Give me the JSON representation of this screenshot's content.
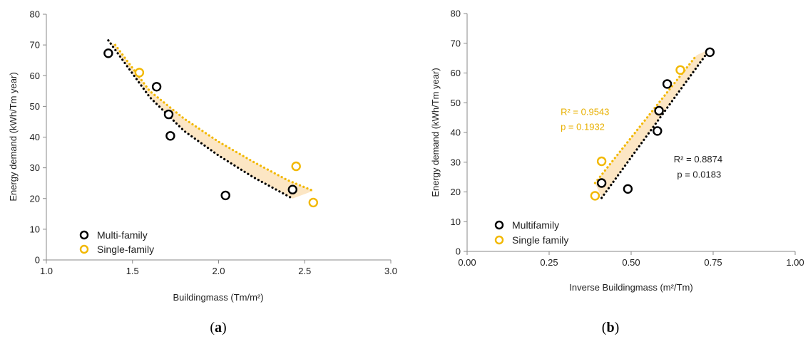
{
  "colors": {
    "multi": "#000000",
    "single": "#f2b800",
    "band": "#fce6c4",
    "axis": "#888888",
    "annot_single": "#e8b000",
    "annot_multi": "#222222"
  },
  "chart_data": [
    {
      "type": "scatter",
      "panel_label": "a",
      "xlabel": "Buildingmass (Tm/m²)",
      "ylabel": "Energy demand (kWh/Tm year)",
      "xlim": [
        1.0,
        3.0
      ],
      "ylim": [
        0,
        80
      ],
      "xticks": [
        "1.0",
        "1.5",
        "2.0",
        "2.5",
        "3.0"
      ],
      "xtick_values": [
        1.0,
        1.5,
        2.0,
        2.5,
        3.0
      ],
      "yticks": [
        "0",
        "10",
        "20",
        "30",
        "40",
        "50",
        "60",
        "70",
        "80"
      ],
      "ytick_values": [
        0,
        10,
        20,
        30,
        40,
        50,
        60,
        70,
        80
      ],
      "legend": [
        "Multi-family",
        "Single-family"
      ],
      "legend_position": "bottom-left",
      "series": [
        {
          "name": "Multi-family",
          "x": [
            1.36,
            1.64,
            1.71,
            1.72,
            2.04,
            2.43
          ],
          "y": [
            67.3,
            56.4,
            47.4,
            40.4,
            21.0,
            22.9
          ]
        },
        {
          "name": "Single-family",
          "x": [
            1.54,
            2.45,
            2.55
          ],
          "y": [
            61.0,
            30.5,
            18.7
          ]
        }
      ],
      "trendlines": [
        {
          "series": "Multi-family",
          "x": [
            1.36,
            1.6,
            1.8,
            2.0,
            2.2,
            2.43
          ],
          "y": [
            71.5,
            53.0,
            42.0,
            34.0,
            27.0,
            20.0
          ]
        },
        {
          "series": "Single-family",
          "x": [
            1.4,
            1.6,
            1.8,
            2.0,
            2.2,
            2.4,
            2.55
          ],
          "y": [
            70.0,
            55.0,
            46.0,
            38.5,
            32.0,
            26.0,
            22.5
          ]
        }
      ],
      "band": true,
      "grid": false
    },
    {
      "type": "scatter",
      "panel_label": "b",
      "xlabel": "Inverse Buildingmass (m²/Tm)",
      "ylabel": "Energy demand (kWh/Tm year)",
      "xlim": [
        0.0,
        1.0
      ],
      "ylim": [
        0,
        80
      ],
      "xticks": [
        "0.00",
        "0.25",
        "0.50",
        "0.75",
        "1.00"
      ],
      "xtick_values": [
        0.0,
        0.25,
        0.5,
        0.75,
        1.0
      ],
      "yticks": [
        "0",
        "10",
        "20",
        "30",
        "40",
        "50",
        "60",
        "70",
        "80"
      ],
      "ytick_values": [
        0,
        10,
        20,
        30,
        40,
        50,
        60,
        70,
        80
      ],
      "legend": [
        "Multifamily",
        "Single family"
      ],
      "legend_position": "bottom-left",
      "series": [
        {
          "name": "Multifamily",
          "x": [
            0.41,
            0.49,
            0.58,
            0.585,
            0.61,
            0.74
          ],
          "y": [
            23.0,
            21.0,
            40.5,
            47.3,
            56.3,
            67.0
          ]
        },
        {
          "name": "Single family",
          "x": [
            0.39,
            0.41,
            0.65
          ],
          "y": [
            18.7,
            30.3,
            61.0
          ]
        }
      ],
      "trendlines": [
        {
          "series": "Multifamily",
          "x": [
            0.41,
            0.74
          ],
          "y": [
            18.0,
            68.0
          ]
        },
        {
          "series": "Single family",
          "x": [
            0.39,
            0.7
          ],
          "y": [
            23.0,
            66.0
          ]
        }
      ],
      "annotations": [
        {
          "series": "Single family",
          "r2": "R² = 0.9543",
          "p": "p = 0.1932",
          "at": [
            0.285,
            45.9
          ],
          "p_at": [
            0.285,
            40.8
          ]
        },
        {
          "series": "Multifamily",
          "r2": "R² = 0.8874",
          "p": "p = 0.0183",
          "at": [
            0.63,
            30.0
          ],
          "p_at": [
            0.64,
            24.8
          ]
        }
      ],
      "band": true,
      "grid": false
    }
  ]
}
